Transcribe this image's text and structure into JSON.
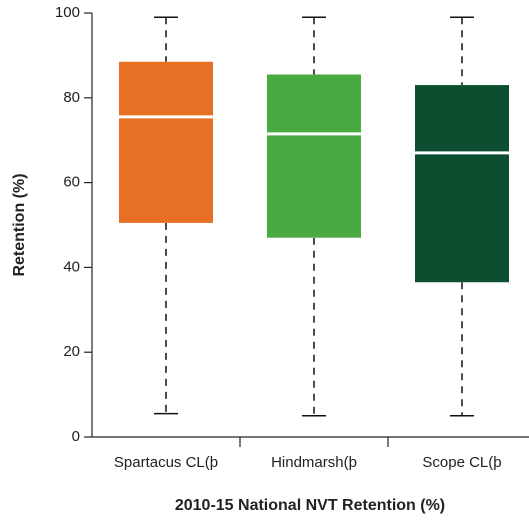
{
  "chart_data": {
    "type": "box",
    "title": "2010-15 National NVT Retention (%)",
    "y_label": "Retention (%)",
    "categories": [
      "Spartacus CL(þ",
      "Hindmarsh(þ",
      "Scope CL(þ"
    ],
    "colors": [
      "#e87024",
      "#4aaa42",
      "#0b4f30"
    ],
    "min": [
      5.5,
      5,
      5
    ],
    "q1": [
      50.5,
      47,
      36.5
    ],
    "median": [
      75.5,
      71.5,
      67
    ],
    "q3": [
      88.5,
      85.5,
      83
    ],
    "max": [
      99,
      99,
      99
    ],
    "ylim": [
      0,
      100
    ],
    "yticks": [
      0,
      20,
      40,
      60,
      80,
      100
    ]
  }
}
